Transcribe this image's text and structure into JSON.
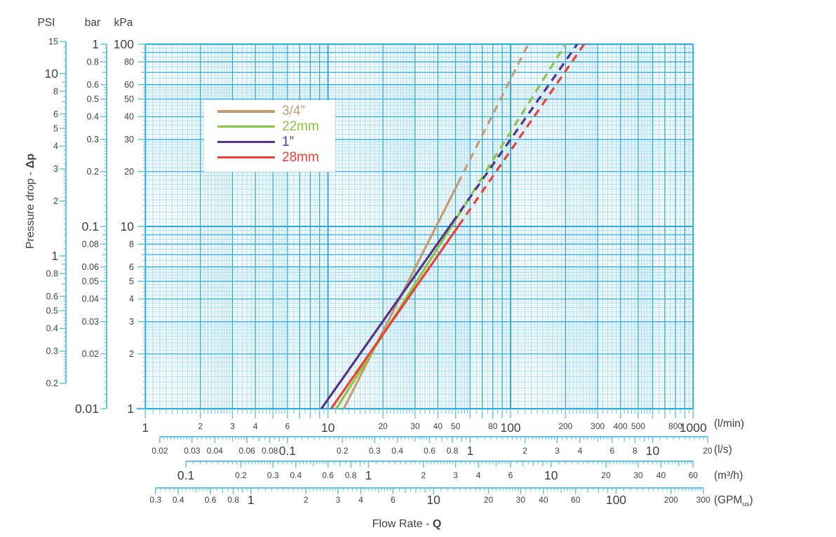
{
  "titles": {
    "y_regular": "Pressure drop  - ",
    "y_bold": "Δp",
    "x_regular": "Flow Rate - ",
    "x_bold": "Q"
  },
  "pressure_scales": {
    "psi": {
      "header": "PSI",
      "labels": [
        "0.2",
        "0.3",
        "0.4",
        "0.5",
        "0.6",
        "0.8",
        "1",
        "2",
        "3",
        "4",
        "5",
        "6",
        "8",
        "10",
        "15"
      ],
      "kpa_per_unit": 6.89476,
      "min": 0.2,
      "max": 15
    },
    "bar": {
      "header": "bar",
      "labels": [
        "0.01",
        "0.02",
        "0.03",
        "0.04",
        "0.05",
        "0.06",
        "0.08",
        "0.1",
        "0.2",
        "0.3",
        "0.4",
        "0.5",
        "0.6",
        "0.8",
        "1"
      ],
      "kpa_per_unit": 100,
      "min": 0.01,
      "max": 1
    },
    "kpa": {
      "header": "kPa",
      "labels": [
        "1",
        "2",
        "3",
        "4",
        "5",
        "6",
        "8",
        "10",
        "20",
        "30",
        "40",
        "50",
        "60",
        "80",
        "100"
      ],
      "kpa_per_unit": 1,
      "min": 1,
      "max": 100
    }
  },
  "flow_scales": {
    "lmin": {
      "unit": "(l/min)",
      "labels": [
        "1",
        "2",
        "3",
        "4",
        "6",
        "10",
        "20",
        "30",
        "40",
        "50",
        "80",
        "100",
        "200",
        "300",
        "400",
        "500",
        "800",
        "1000"
      ],
      "lmin_per_unit": 1,
      "min": 1,
      "max": 1000
    },
    "ls": {
      "unit": "(l/s)",
      "labels": [
        "0.02",
        "0.03",
        "0.04",
        "0.06",
        "0.08",
        "0.1",
        "0.2",
        "0.3",
        "0.4",
        "0.6",
        "0.8",
        "1",
        "2",
        "3",
        "4",
        "6",
        "8",
        "10",
        "20"
      ],
      "lmin_per_unit": 60,
      "min": 0.02,
      "max": 20
    },
    "m3h": {
      "unit": "(m³/h)",
      "labels": [
        "0.1",
        "0.2",
        "0.3",
        "0.4",
        "0.6",
        "0.8",
        "1",
        "2",
        "3",
        "4",
        "6",
        "10",
        "20",
        "30",
        "40",
        "60"
      ],
      "lmin_per_unit": 16.6667,
      "min": 0.1,
      "max": 60
    },
    "gpm": {
      "unit_pre": "(GPM",
      "unit_sub": "us",
      "unit_post": ")",
      "labels": [
        "0.3",
        "0.4",
        "0.6",
        "0.8",
        "1",
        "2",
        "3",
        "4",
        "6",
        "10",
        "20",
        "30",
        "40",
        "60",
        "100",
        "200",
        "300"
      ],
      "lmin_per_unit": 3.78541,
      "min": 0.3,
      "max": 300
    }
  },
  "legend": {
    "items": [
      {
        "label": "3/4”",
        "color": "#C69C6D"
      },
      {
        "label": "22mm",
        "color": "#8CC63F"
      },
      {
        "label": "1”",
        "color": "#55328C"
      },
      {
        "label": "28mm",
        "color": "#EF3E36"
      }
    ]
  },
  "chart_data": {
    "type": "line",
    "x_axis": {
      "label": "Flow Rate - Q",
      "primary_unit": "l/min",
      "scale": "log",
      "range": [
        1,
        1000
      ],
      "alt_units": [
        "l/s",
        "m³/h",
        "GPM_US"
      ]
    },
    "y_axis": {
      "label": "Pressure drop - Δp",
      "primary_unit": "kPa",
      "scale": "log",
      "range": [
        1,
        100
      ],
      "alt_units": [
        "PSI",
        "bar"
      ]
    },
    "grid": true,
    "legend_position": "upper-left-area",
    "series": [
      {
        "name": "3/4”",
        "color": "#C69C6D",
        "solid_lmin_kpa": [
          [
            12.2,
            1
          ],
          [
            51.5,
            17.2
          ]
        ],
        "dashed_lmin_kpa": [
          [
            51.5,
            17.2
          ],
          [
            125,
            100
          ]
        ]
      },
      {
        "name": "22mm",
        "color": "#8CC63F",
        "solid_lmin_kpa": [
          [
            11.1,
            1
          ],
          [
            51.5,
            11.4
          ]
        ],
        "dashed_lmin_kpa": [
          [
            51.5,
            11.4
          ],
          [
            200,
            100
          ]
        ]
      },
      {
        "name": "1”",
        "color": "#55328C",
        "solid_lmin_kpa": [
          [
            9.2,
            1
          ],
          [
            48,
            10.5
          ]
        ],
        "dashed_lmin_kpa": [
          [
            48,
            10.5
          ],
          [
            232,
            100
          ]
        ]
      },
      {
        "name": "28mm",
        "color": "#EF3E36",
        "solid_lmin_kpa": [
          [
            10.4,
            1
          ],
          [
            52,
            10.1
          ]
        ],
        "dashed_lmin_kpa": [
          [
            52,
            10.1
          ],
          [
            253,
            100
          ]
        ]
      }
    ]
  },
  "colors": {
    "grid_strong": "#29ABE2",
    "grid_light": "#A7DDF4",
    "grid_faint": "#DCF1FB",
    "axis_line": "#29ABE2",
    "tick": "#5BC5ED",
    "text": "#414042",
    "background": "#FFFFFF"
  }
}
